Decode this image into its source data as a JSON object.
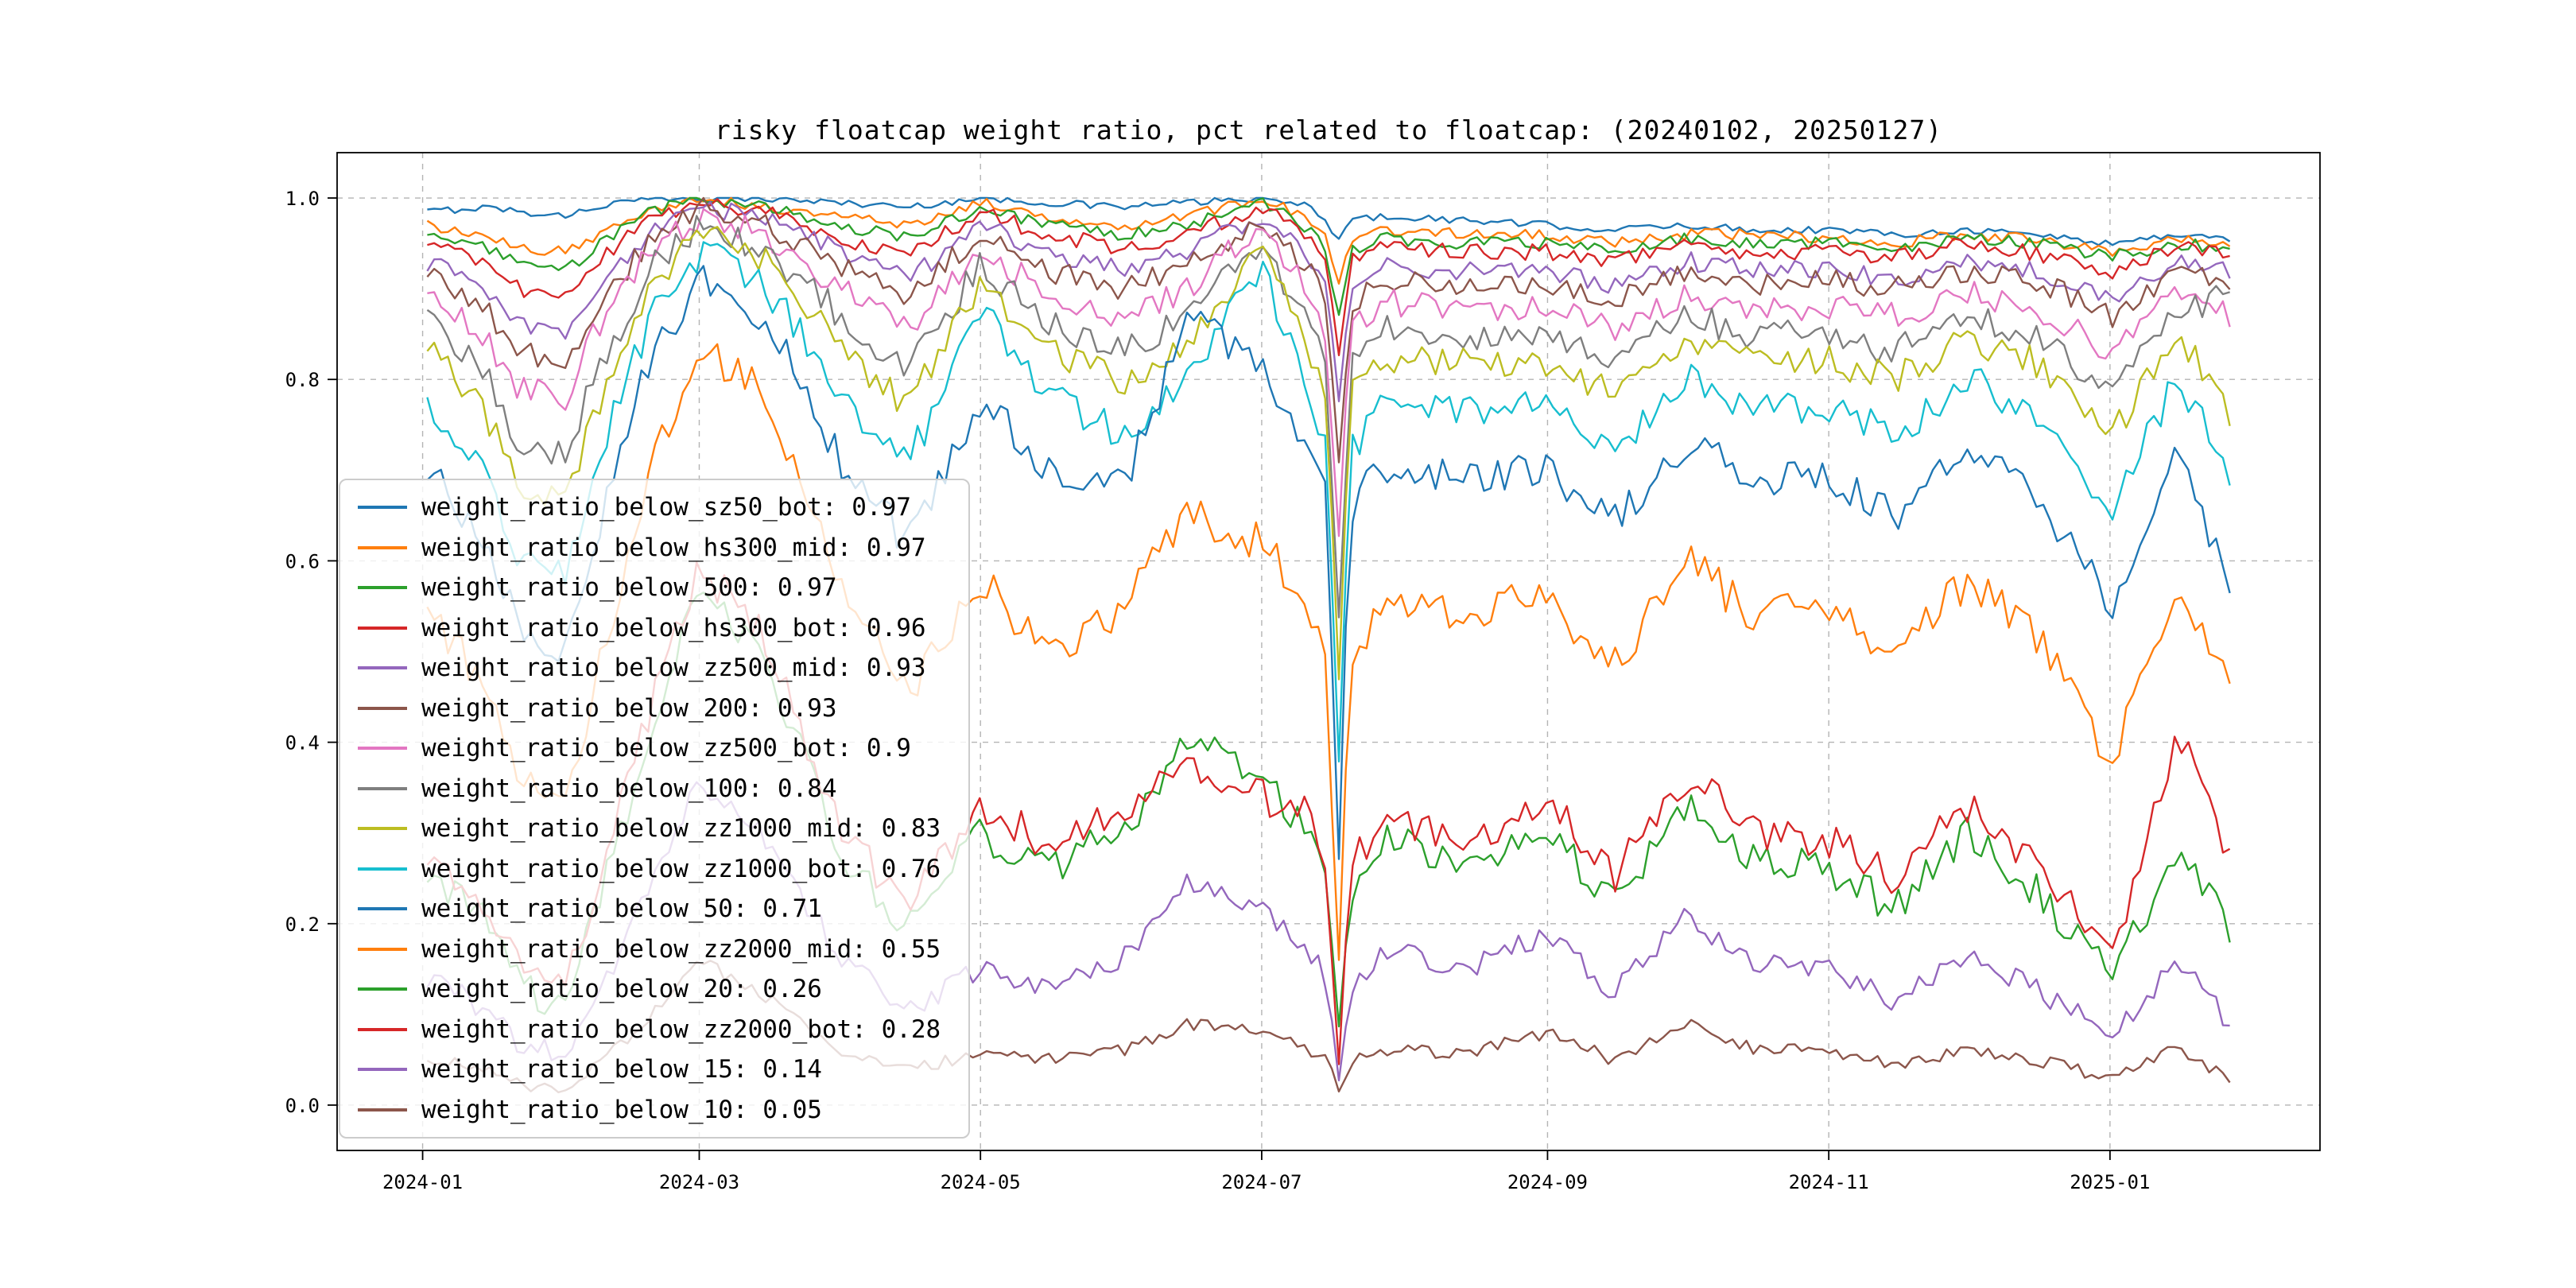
{
  "chart_data": {
    "type": "line",
    "title": "risky floatcap weight ratio, pct related to floatcap: (20240102, 20250127)",
    "x_start": "2024-01-02",
    "x_end": "2025-01-27",
    "x_tick_labels": [
      "2024-01",
      "2024-03",
      "2024-05",
      "2024-07",
      "2024-09",
      "2024-11",
      "2025-01"
    ],
    "y_ticks": [
      0.0,
      0.2,
      0.4,
      0.6,
      0.8,
      1.0
    ],
    "y_tick_labels": [
      "0.0",
      "0.2",
      "0.4",
      "0.6",
      "0.8",
      "1.0"
    ],
    "ylim": [
      0.0,
      1.0
    ],
    "grid": true,
    "legend_position": "center left",
    "x": [
      0.0,
      0.033,
      0.051,
      0.077,
      0.092,
      0.125,
      0.151,
      0.187,
      0.23,
      0.266,
      0.307,
      0.343,
      0.386,
      0.422,
      0.463,
      0.49,
      0.5,
      0.505,
      0.512,
      0.53,
      0.579,
      0.622,
      0.658,
      0.699,
      0.735,
      0.779,
      0.814,
      0.855,
      0.891,
      0.935,
      0.971,
      1.0
    ],
    "series": [
      {
        "name": "weight_ratio_below_sz50_bot",
        "legend_value": "0.97",
        "color": "#1f77b4",
        "noise": 0.004,
        "values": [
          0.985,
          0.99,
          0.985,
          0.98,
          0.99,
          1.0,
          1.0,
          1.0,
          0.995,
          0.99,
          1.0,
          0.995,
          0.99,
          0.995,
          1.0,
          0.99,
          0.975,
          0.95,
          0.975,
          0.98,
          0.975,
          0.97,
          0.965,
          0.97,
          0.965,
          0.965,
          0.96,
          0.965,
          0.96,
          0.95,
          0.96,
          0.955
        ]
      },
      {
        "name": "weight_ratio_below_hs300_mid",
        "legend_value": "0.97",
        "color": "#ff7f0e",
        "noise": 0.006,
        "values": [
          0.97,
          0.955,
          0.945,
          0.94,
          0.955,
          0.99,
          1.0,
          0.99,
          0.98,
          0.97,
          0.995,
          0.98,
          0.97,
          0.98,
          1.0,
          0.975,
          0.95,
          0.9,
          0.95,
          0.965,
          0.96,
          0.96,
          0.95,
          0.96,
          0.96,
          0.955,
          0.95,
          0.96,
          0.955,
          0.94,
          0.955,
          0.95
        ]
      },
      {
        "name": "weight_ratio_below_500",
        "legend_value": "0.97",
        "color": "#2ca02c",
        "noise": 0.007,
        "values": [
          0.96,
          0.945,
          0.925,
          0.92,
          0.945,
          0.985,
          1.0,
          0.99,
          0.97,
          0.955,
          0.99,
          0.97,
          0.96,
          0.97,
          0.995,
          0.965,
          0.94,
          0.86,
          0.94,
          0.955,
          0.95,
          0.95,
          0.94,
          0.955,
          0.95,
          0.95,
          0.945,
          0.955,
          0.95,
          0.935,
          0.95,
          0.945
        ]
      },
      {
        "name": "weight_ratio_below_hs300_bot",
        "legend_value": "0.96",
        "color": "#d62728",
        "noise": 0.009,
        "values": [
          0.95,
          0.925,
          0.9,
          0.89,
          0.925,
          0.98,
          0.995,
          0.985,
          0.955,
          0.935,
          0.985,
          0.96,
          0.945,
          0.96,
          0.99,
          0.955,
          0.93,
          0.82,
          0.93,
          0.945,
          0.94,
          0.94,
          0.93,
          0.95,
          0.94,
          0.94,
          0.935,
          0.95,
          0.94,
          0.92,
          0.945,
          0.94
        ]
      },
      {
        "name": "weight_ratio_below_zz500_mid",
        "legend_value": "0.93",
        "color": "#9467bd",
        "noise": 0.011,
        "values": [
          0.93,
          0.895,
          0.86,
          0.85,
          0.895,
          0.965,
          0.99,
          0.98,
          0.94,
          0.91,
          0.97,
          0.94,
          0.92,
          0.94,
          0.98,
          0.935,
          0.9,
          0.75,
          0.9,
          0.925,
          0.92,
          0.92,
          0.9,
          0.93,
          0.92,
          0.92,
          0.91,
          0.93,
          0.92,
          0.89,
          0.93,
          0.92
        ]
      },
      {
        "name": "weight_ratio_below_200",
        "legend_value": "0.93",
        "color": "#8c564b",
        "noise": 0.013,
        "values": [
          0.92,
          0.875,
          0.83,
          0.82,
          0.875,
          0.955,
          0.99,
          0.97,
          0.925,
          0.89,
          0.96,
          0.92,
          0.9,
          0.925,
          0.975,
          0.92,
          0.88,
          0.7,
          0.88,
          0.91,
          0.905,
          0.905,
          0.885,
          0.92,
          0.905,
          0.91,
          0.9,
          0.92,
          0.91,
          0.87,
          0.92,
          0.9
        ]
      },
      {
        "name": "weight_ratio_below_zz500_bot",
        "legend_value": "0.9",
        "color": "#e377c2",
        "noise": 0.015,
        "values": [
          0.9,
          0.845,
          0.79,
          0.78,
          0.85,
          0.945,
          0.98,
          0.96,
          0.9,
          0.855,
          0.945,
          0.895,
          0.87,
          0.9,
          0.97,
          0.89,
          0.84,
          0.6,
          0.85,
          0.885,
          0.88,
          0.88,
          0.855,
          0.895,
          0.88,
          0.88,
          0.87,
          0.895,
          0.88,
          0.83,
          0.895,
          0.87
        ]
      },
      {
        "name": "weight_ratio_below_100",
        "legend_value": "0.84",
        "color": "#7f7f7f",
        "noise": 0.017,
        "values": [
          0.87,
          0.8,
          0.73,
          0.72,
          0.8,
          0.925,
          0.97,
          0.945,
          0.87,
          0.81,
          0.925,
          0.865,
          0.83,
          0.87,
          0.955,
          0.855,
          0.8,
          0.5,
          0.81,
          0.855,
          0.85,
          0.85,
          0.82,
          0.87,
          0.85,
          0.85,
          0.83,
          0.87,
          0.85,
          0.78,
          0.88,
          0.89
        ]
      },
      {
        "name": "weight_ratio_below_zz1000_mid",
        "legend_value": "0.83",
        "color": "#bcbd22",
        "noise": 0.017,
        "values": [
          0.84,
          0.76,
          0.68,
          0.67,
          0.76,
          0.905,
          0.96,
          0.93,
          0.835,
          0.77,
          0.905,
          0.835,
          0.795,
          0.845,
          0.945,
          0.825,
          0.77,
          0.44,
          0.78,
          0.825,
          0.82,
          0.82,
          0.785,
          0.845,
          0.82,
          0.82,
          0.8,
          0.845,
          0.82,
          0.74,
          0.85,
          0.765
        ]
      },
      {
        "name": "weight_ratio_below_zz1000_bot",
        "legend_value": "0.76",
        "color": "#17becf",
        "noise": 0.019,
        "values": [
          0.78,
          0.7,
          0.6,
          0.58,
          0.7,
          0.875,
          0.94,
          0.905,
          0.785,
          0.705,
          0.875,
          0.785,
          0.74,
          0.8,
          0.93,
          0.77,
          0.71,
          0.34,
          0.72,
          0.775,
          0.77,
          0.77,
          0.725,
          0.8,
          0.765,
          0.77,
          0.74,
          0.8,
          0.76,
          0.66,
          0.8,
          0.7
        ]
      },
      {
        "name": "weight_ratio_below_50",
        "legend_value": "0.71",
        "color": "#1f77b4",
        "noise": 0.02,
        "values": [
          0.7,
          0.62,
          0.52,
          0.5,
          0.62,
          0.83,
          0.91,
          0.87,
          0.71,
          0.62,
          0.78,
          0.7,
          0.68,
          0.87,
          0.82,
          0.72,
          0.66,
          0.22,
          0.66,
          0.7,
          0.69,
          0.7,
          0.64,
          0.735,
          0.69,
          0.69,
          0.65,
          0.73,
          0.68,
          0.55,
          0.72,
          0.58
        ]
      },
      {
        "name": "weight_ratio_below_zz2000_mid",
        "legend_value": "0.55",
        "color": "#ff7f0e",
        "noise": 0.022,
        "values": [
          0.55,
          0.46,
          0.36,
          0.33,
          0.46,
          0.71,
          0.84,
          0.78,
          0.565,
          0.455,
          0.58,
          0.5,
          0.55,
          0.65,
          0.62,
          0.55,
          0.48,
          0.1,
          0.48,
          0.55,
          0.545,
          0.56,
          0.48,
          0.6,
          0.54,
          0.545,
          0.49,
          0.58,
          0.52,
          0.38,
          0.57,
          0.48
        ]
      },
      {
        "name": "weight_ratio_below_20",
        "legend_value": "0.26",
        "color": "#2ca02c",
        "noise": 0.02,
        "values": [
          0.26,
          0.2,
          0.13,
          0.11,
          0.2,
          0.42,
          0.57,
          0.49,
          0.28,
          0.19,
          0.3,
          0.26,
          0.3,
          0.4,
          0.36,
          0.3,
          0.24,
          0.05,
          0.24,
          0.3,
          0.265,
          0.305,
          0.22,
          0.335,
          0.27,
          0.26,
          0.215,
          0.3,
          0.24,
          0.14,
          0.285,
          0.19
        ]
      },
      {
        "name": "weight_ratio_below_zz2000_bot",
        "legend_value": "0.28",
        "color": "#d62728",
        "noise": 0.02,
        "values": [
          0.28,
          0.225,
          0.155,
          0.135,
          0.225,
          0.445,
          0.595,
          0.515,
          0.305,
          0.215,
          0.33,
          0.29,
          0.32,
          0.37,
          0.34,
          0.32,
          0.26,
          0.02,
          0.26,
          0.32,
          0.295,
          0.335,
          0.25,
          0.365,
          0.3,
          0.29,
          0.25,
          0.33,
          0.27,
          0.165,
          0.41,
          0.27
        ]
      },
      {
        "name": "weight_ratio_below_15",
        "legend_value": "0.14",
        "color": "#9467bd",
        "noise": 0.013,
        "values": [
          0.14,
          0.105,
          0.065,
          0.055,
          0.105,
          0.245,
          0.36,
          0.295,
          0.16,
          0.105,
          0.15,
          0.13,
          0.16,
          0.25,
          0.22,
          0.17,
          0.13,
          0.02,
          0.13,
          0.17,
          0.15,
          0.19,
          0.125,
          0.21,
          0.155,
          0.15,
          0.115,
          0.165,
          0.13,
          0.075,
          0.16,
          0.09
        ]
      },
      {
        "name": "weight_ratio_below_10",
        "legend_value": "0.05",
        "color": "#8c564b",
        "noise": 0.007,
        "values": [
          0.05,
          0.04,
          0.022,
          0.018,
          0.04,
          0.1,
          0.16,
          0.12,
          0.06,
          0.04,
          0.055,
          0.05,
          0.06,
          0.09,
          0.08,
          0.06,
          0.05,
          0.012,
          0.05,
          0.06,
          0.058,
          0.08,
          0.05,
          0.09,
          0.062,
          0.06,
          0.045,
          0.06,
          0.05,
          0.03,
          0.062,
          0.028
        ]
      }
    ]
  }
}
